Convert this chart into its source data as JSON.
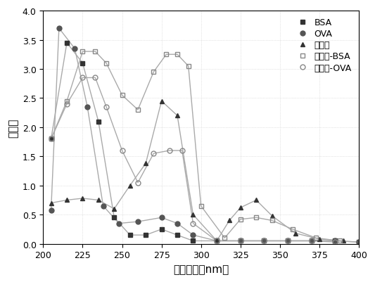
{
  "xlabel": "检测波长（nm）",
  "ylabel": "吸光值",
  "xlim": [
    200,
    400
  ],
  "ylim": [
    0,
    4.0
  ],
  "xticks": [
    200,
    225,
    250,
    275,
    300,
    325,
    350,
    375,
    400
  ],
  "yticks": [
    0.0,
    0.5,
    1.0,
    1.5,
    2.0,
    2.5,
    3.0,
    3.5,
    4.0
  ],
  "series": [
    {
      "key": "BSA",
      "x": [
        205,
        215,
        225,
        235,
        245,
        255,
        265,
        275,
        285,
        295,
        310,
        325,
        340,
        355,
        370,
        385,
        400
      ],
      "y": [
        1.8,
        3.45,
        3.1,
        2.1,
        0.45,
        0.15,
        0.15,
        0.25,
        0.15,
        0.05,
        0.05,
        0.05,
        0.05,
        0.05,
        0.05,
        0.05,
        0.03
      ],
      "marker": "s",
      "markercolor": "#333333",
      "linecolor": "#aaaaaa",
      "fillstyle": "full",
      "label": "BSA"
    },
    {
      "key": "OVA",
      "x": [
        205,
        210,
        220,
        228,
        238,
        248,
        260,
        275,
        285,
        295,
        310,
        325,
        340,
        355,
        370,
        385,
        400
      ],
      "y": [
        0.58,
        3.7,
        3.35,
        2.35,
        0.65,
        0.35,
        0.38,
        0.45,
        0.35,
        0.15,
        0.05,
        0.05,
        0.05,
        0.05,
        0.05,
        0.05,
        0.03
      ],
      "marker": "o",
      "markercolor": "#555555",
      "linecolor": "#aaaaaa",
      "fillstyle": "full",
      "label": "OVA"
    },
    {
      "key": "pipemidic",
      "x": [
        205,
        215,
        225,
        235,
        245,
        255,
        265,
        275,
        285,
        295,
        310,
        318,
        325,
        335,
        345,
        360,
        375,
        390
      ],
      "y": [
        0.7,
        0.75,
        0.78,
        0.75,
        0.6,
        1.0,
        1.38,
        2.45,
        2.2,
        0.5,
        0.05,
        0.4,
        0.62,
        0.75,
        0.48,
        0.18,
        0.08,
        0.05
      ],
      "marker": "^",
      "markercolor": "#333333",
      "linecolor": "#aaaaaa",
      "fillstyle": "full",
      "label": "吡哌酸"
    },
    {
      "key": "pipemidic-BSA",
      "x": [
        205,
        215,
        225,
        233,
        240,
        250,
        260,
        270,
        278,
        285,
        292,
        300,
        315,
        325,
        335,
        345,
        358,
        373,
        388
      ],
      "y": [
        1.8,
        2.45,
        3.3,
        3.3,
        3.1,
        2.55,
        2.3,
        2.95,
        3.25,
        3.25,
        3.05,
        0.65,
        0.1,
        0.42,
        0.45,
        0.4,
        0.25,
        0.1,
        0.05
      ],
      "marker": "s",
      "markercolor": "#888888",
      "linecolor": "#aaaaaa",
      "fillstyle": "none",
      "label": "吡哌酸-BSA"
    },
    {
      "key": "pipemidic-OVA",
      "x": [
        205,
        215,
        225,
        233,
        240,
        250,
        260,
        270,
        280,
        288,
        295,
        310,
        325,
        340,
        355,
        370,
        385
      ],
      "y": [
        1.8,
        2.4,
        2.85,
        2.85,
        2.35,
        1.6,
        1.05,
        1.55,
        1.6,
        1.6,
        0.35,
        0.05,
        0.05,
        0.05,
        0.05,
        0.05,
        0.03
      ],
      "marker": "o",
      "markercolor": "#888888",
      "linecolor": "#aaaaaa",
      "fillstyle": "none",
      "label": "吡哌酸-OVA"
    }
  ],
  "background_color": "#ffffff",
  "grid_color": "#cccccc",
  "legend_fontsize": 9,
  "axis_fontsize": 11,
  "tick_fontsize": 9
}
